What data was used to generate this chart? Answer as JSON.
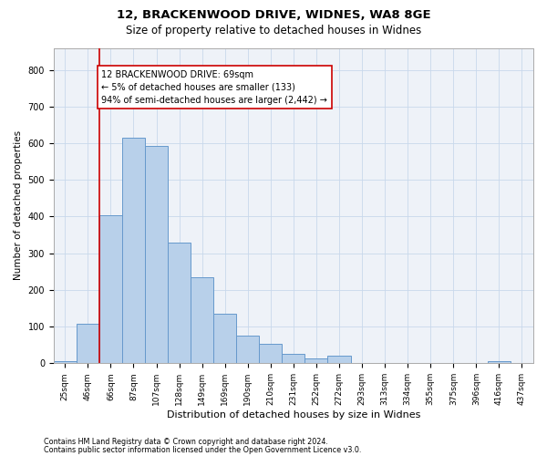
{
  "title1": "12, BRACKENWOOD DRIVE, WIDNES, WA8 8GE",
  "title2": "Size of property relative to detached houses in Widnes",
  "xlabel": "Distribution of detached houses by size in Widnes",
  "ylabel": "Number of detached properties",
  "categories": [
    "25sqm",
    "46sqm",
    "66sqm",
    "87sqm",
    "107sqm",
    "128sqm",
    "149sqm",
    "169sqm",
    "190sqm",
    "210sqm",
    "231sqm",
    "252sqm",
    "272sqm",
    "293sqm",
    "313sqm",
    "334sqm",
    "355sqm",
    "375sqm",
    "396sqm",
    "416sqm",
    "437sqm"
  ],
  "values": [
    5,
    107,
    404,
    614,
    592,
    330,
    235,
    135,
    75,
    52,
    26,
    14,
    20,
    0,
    0,
    0,
    0,
    0,
    0,
    7,
    0
  ],
  "bar_color": "#b8d0ea",
  "bar_edge_color": "#6699cc",
  "vline_x": 1.5,
  "vline_color": "#cc0000",
  "annotation_text": "12 BRACKENWOOD DRIVE: 69sqm\n← 5% of detached houses are smaller (133)\n94% of semi-detached houses are larger (2,442) →",
  "annotation_box_color": "#ffffff",
  "annotation_box_edge_color": "#cc0000",
  "ylim": [
    0,
    860
  ],
  "yticks": [
    0,
    100,
    200,
    300,
    400,
    500,
    600,
    700,
    800
  ],
  "footer1": "Contains HM Land Registry data © Crown copyright and database right 2024.",
  "footer2": "Contains public sector information licensed under the Open Government Licence v3.0.",
  "bg_color": "#eef2f8",
  "title_fontsize": 9.5,
  "subtitle_fontsize": 8.5,
  "tick_fontsize": 6.5,
  "ylabel_fontsize": 7.5,
  "xlabel_fontsize": 8.0,
  "annotation_fontsize": 7.0,
  "footer_fontsize": 5.8
}
